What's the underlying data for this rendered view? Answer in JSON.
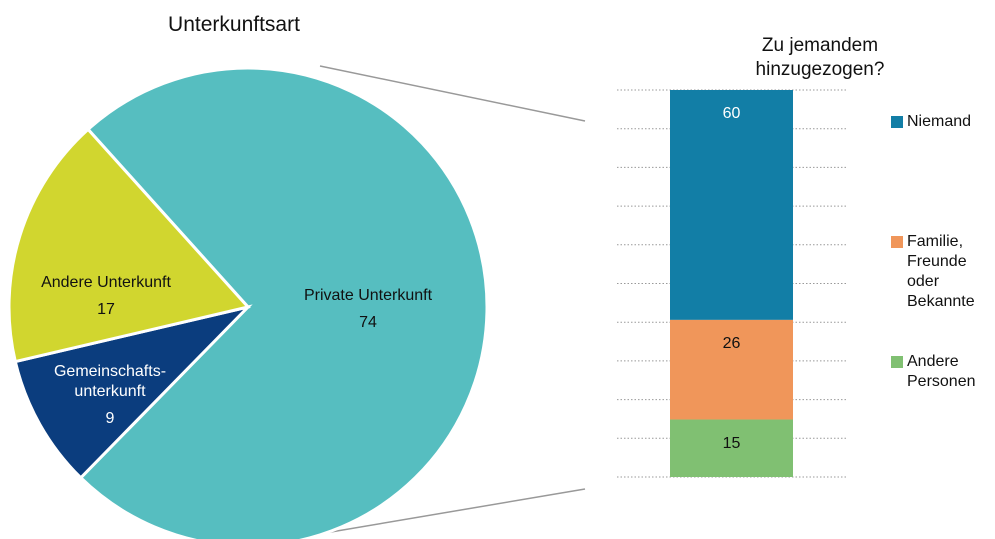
{
  "chart_data": [
    {
      "type": "pie",
      "title": "Unterkunftsart",
      "categories": [
        "Private Unterkunft",
        "Gemeinschafts-\nunterkunft",
        "Andere Unterkunft"
      ],
      "values": [
        74,
        9,
        17
      ],
      "colors": [
        "#56bec0",
        "#0b3d7e",
        "#d1d62f"
      ]
    },
    {
      "type": "stacked_bar",
      "title": "Zu jemandem hinzugezogen?",
      "series": [
        {
          "name": "Niemand",
          "color": "#127ea6",
          "values": [
            60
          ]
        },
        {
          "name": "Familie,\nFreunde\noder\nBekannte",
          "color": "#f0965a",
          "values": [
            26
          ]
        },
        {
          "name": "Andere\nPersonen",
          "color": "#80c072",
          "values": [
            15
          ]
        }
      ]
    }
  ]
}
